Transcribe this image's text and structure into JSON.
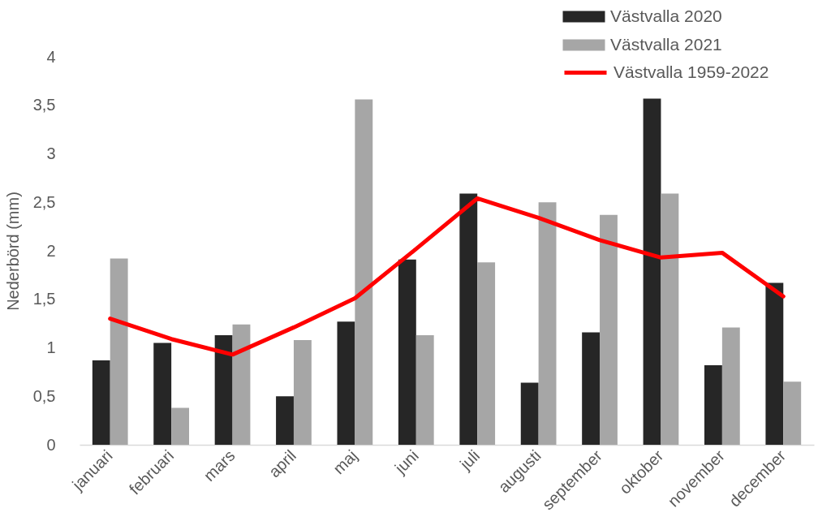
{
  "chart_data": {
    "type": "bar",
    "ylabel": "Nederbörd (mm)",
    "categories": [
      "januari",
      "februari",
      "mars",
      "april",
      "maj",
      "juni",
      "juli",
      "augusti",
      "september",
      "oktober",
      "november",
      "december"
    ],
    "series": [
      {
        "name": "Västvalla 2020",
        "color": "#262626",
        "values": [
          0.87,
          1.05,
          1.13,
          0.5,
          1.27,
          1.91,
          2.59,
          0.64,
          1.16,
          3.57,
          0.82,
          1.67
        ]
      },
      {
        "name": "Västvalla 2021",
        "color": "#a6a6a6",
        "values": [
          1.92,
          0.38,
          1.24,
          1.08,
          3.56,
          1.13,
          1.88,
          2.5,
          2.37,
          2.59,
          1.21,
          0.65
        ]
      },
      {
        "name": "Västvalla 1959-2022",
        "type": "line",
        "color": "#ff0000",
        "values": [
          1.3,
          1.09,
          0.93,
          1.21,
          1.51,
          2.02,
          2.54,
          2.34,
          2.11,
          1.93,
          1.98,
          1.53
        ]
      }
    ],
    "ylim": [
      0,
      4
    ],
    "yticks": [
      0,
      {
        "value": 0.5,
        "label": "0,5"
      },
      1,
      {
        "value": 1.5,
        "label": "1,5"
      },
      2,
      {
        "value": 2.5,
        "label": "2,5"
      },
      3,
      {
        "value": 3.5,
        "label": "3,5"
      },
      4
    ],
    "grid": false,
    "legend": "top right"
  }
}
